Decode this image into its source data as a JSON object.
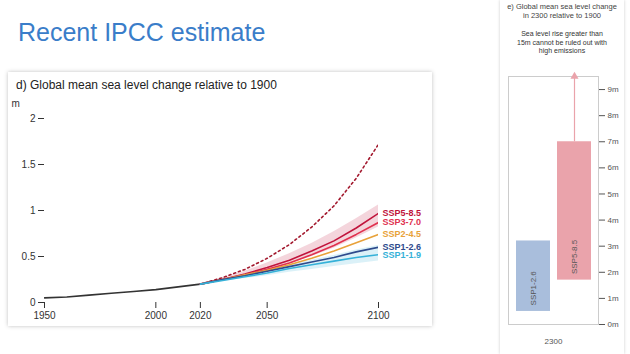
{
  "title": "Recent IPCC estimate",
  "chart_data": [
    {
      "type": "line",
      "title": "d) Global mean sea level change relative to 1900",
      "ylabel": "m",
      "xlim": [
        1950,
        2100
      ],
      "xticks": [
        1950,
        2000,
        2020,
        2050,
        2100
      ],
      "ylim": [
        0,
        2
      ],
      "yticks": [
        0,
        0.5,
        1,
        1.5,
        2
      ],
      "grid": false,
      "series": [
        {
          "name": null,
          "color": "#333333",
          "line_style": "solid",
          "x": [
            1950,
            1960,
            1970,
            1980,
            1990,
            2000,
            2010,
            2020
          ],
          "values": [
            0.05,
            0.06,
            0.08,
            0.1,
            0.12,
            0.14,
            0.17,
            0.2
          ]
        },
        {
          "name": null,
          "color": "#a3192e",
          "line_style": "dotted",
          "x": [
            2020,
            2030,
            2040,
            2050,
            2060,
            2070,
            2080,
            2090,
            2100
          ],
          "values": [
            0.2,
            0.27,
            0.36,
            0.48,
            0.63,
            0.82,
            1.05,
            1.35,
            1.72
          ]
        },
        {
          "name": "SSP5-8.5",
          "color": "#c0143c",
          "line_style": "solid",
          "x": [
            2020,
            2030,
            2040,
            2050,
            2060,
            2070,
            2080,
            2090,
            2100
          ],
          "values": [
            0.2,
            0.25,
            0.31,
            0.38,
            0.46,
            0.56,
            0.67,
            0.81,
            0.97
          ],
          "low": [
            0.2,
            0.24,
            0.29,
            0.35,
            0.42,
            0.5,
            0.59,
            0.7,
            0.82
          ],
          "high": [
            0.2,
            0.27,
            0.34,
            0.43,
            0.53,
            0.64,
            0.77,
            0.91,
            1.06
          ]
        },
        {
          "name": "SSP3-7.0",
          "color": "#e0314f",
          "line_style": "solid",
          "x": [
            2020,
            2030,
            2040,
            2050,
            2060,
            2070,
            2080,
            2090,
            2100
          ],
          "values": [
            0.2,
            0.25,
            0.3,
            0.36,
            0.43,
            0.52,
            0.62,
            0.74,
            0.87
          ]
        },
        {
          "name": "SSP2-4.5",
          "color": "#e8a23a",
          "line_style": "solid",
          "x": [
            2020,
            2030,
            2040,
            2050,
            2060,
            2070,
            2080,
            2090,
            2100
          ],
          "values": [
            0.2,
            0.25,
            0.3,
            0.35,
            0.41,
            0.48,
            0.56,
            0.65,
            0.74
          ]
        },
        {
          "name": "SSP1-2.6",
          "color": "#2e4a8c",
          "line_style": "solid",
          "x": [
            2020,
            2030,
            2040,
            2050,
            2060,
            2070,
            2080,
            2090,
            2100
          ],
          "values": [
            0.2,
            0.25,
            0.29,
            0.34,
            0.39,
            0.44,
            0.49,
            0.55,
            0.6
          ]
        },
        {
          "name": "SSP1-1.9",
          "color": "#35b1d8",
          "line_style": "solid",
          "x": [
            2020,
            2030,
            2040,
            2050,
            2060,
            2070,
            2080,
            2090,
            2100
          ],
          "values": [
            0.2,
            0.24,
            0.28,
            0.32,
            0.37,
            0.41,
            0.45,
            0.49,
            0.52
          ],
          "low": [
            0.2,
            0.23,
            0.26,
            0.29,
            0.33,
            0.36,
            0.39,
            0.42,
            0.45
          ],
          "high": [
            0.2,
            0.25,
            0.3,
            0.35,
            0.41,
            0.46,
            0.51,
            0.57,
            0.62
          ]
        }
      ]
    },
    {
      "type": "bar",
      "title": "e) Global mean sea level change in 2300 relative to 1900",
      "xlabel": "2300",
      "categories": [
        "SSP1-2.6",
        "SSP5-8.5"
      ],
      "low": [
        0.5,
        1.7
      ],
      "high": [
        3.2,
        7.0
      ],
      "colors": [
        "#a9bedc",
        "#eaa3ab"
      ],
      "ylim": [
        0,
        9.5
      ],
      "yticks": [
        {
          "value": 0,
          "label": "0m"
        },
        {
          "value": 1,
          "label": "1m"
        },
        {
          "value": 2,
          "label": "2m"
        },
        {
          "value": 3,
          "label": "3m"
        },
        {
          "value": 4,
          "label": "4m"
        },
        {
          "value": 5,
          "label": "5m"
        },
        {
          "value": 6,
          "label": "6m"
        },
        {
          "value": 7,
          "label": "7m"
        },
        {
          "value": 8,
          "label": "8m"
        },
        {
          "value": 9,
          "label": "9m"
        }
      ],
      "tick_labels": "y",
      "grid": false,
      "annotation": {
        "text": "Sea level rise greater than 15m cannot be ruled out with high emissions",
        "category": "SSP5-8.5"
      }
    }
  ]
}
